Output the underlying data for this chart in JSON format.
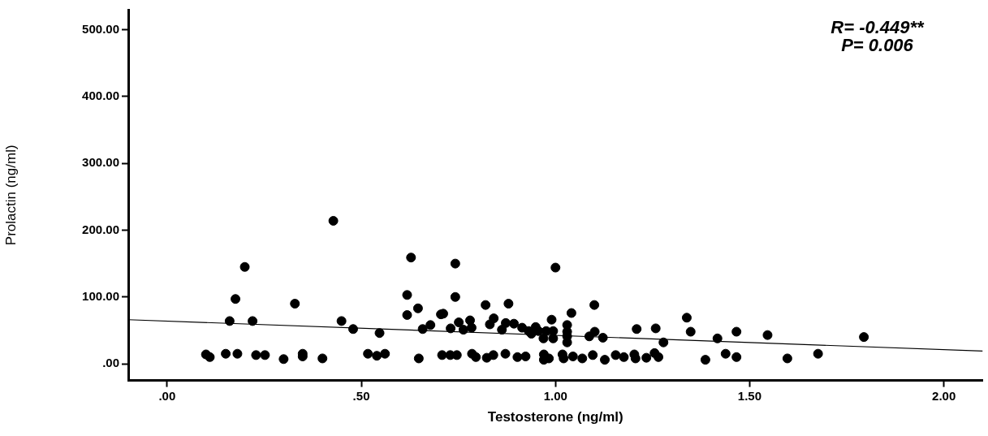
{
  "chart_data": {
    "type": "scatter",
    "xlabel": "Testosterone (ng/ml)",
    "ylabel": "Prolactin (ng/ml)",
    "annotations": [
      "R= -0.449**",
      "P= 0.006"
    ],
    "xlim": [
      -0.1,
      2.1
    ],
    "ylim": [
      -25,
      530
    ],
    "xticks": [
      {
        "value": 0,
        "label": ".00"
      },
      {
        "value": 0.5,
        "label": ".50"
      },
      {
        "value": 1,
        "label": "1.00"
      },
      {
        "value": 1.5,
        "label": "1.50"
      },
      {
        "value": 2,
        "label": "2.00"
      }
    ],
    "yticks": [
      {
        "value": 0,
        "label": ".00"
      },
      {
        "value": 100,
        "label": "100.00"
      },
      {
        "value": 200,
        "label": "200.00"
      },
      {
        "value": 300,
        "label": "300.00"
      },
      {
        "value": 400,
        "label": "400.00"
      },
      {
        "value": 500,
        "label": "500.00"
      }
    ],
    "grid": false,
    "legend": false,
    "marker": "circle",
    "series": [
      {
        "color": "#000000",
        "x": [
          0.1,
          0.11,
          0.151,
          0.181,
          0.2,
          0.176,
          0.161,
          0.22,
          0.229,
          0.252,
          0.3,
          0.349,
          0.349,
          0.4,
          0.329,
          0.428,
          0.449,
          0.479,
          0.547,
          0.517,
          0.54,
          0.561,
          0.628,
          0.618,
          0.646,
          0.618,
          0.658,
          0.678,
          0.648,
          0.705,
          0.708,
          0.742,
          1.0,
          0.742,
          0.82,
          0.879,
          1.1,
          0.711,
          1.041,
          0.99,
          0.751,
          0.73,
          0.78,
          0.763,
          0.784,
          0.841,
          0.831,
          0.862,
          0.872,
          0.893,
          0.914,
          0.931,
          0.949,
          0.938,
          0.956,
          0.976,
          0.994,
          0.969,
          0.994,
          1.03,
          1.03,
          1.03,
          1.03,
          1.101,
          1.087,
          1.122,
          1.209,
          1.258,
          1.278,
          1.338,
          1.348,
          0.729,
          0.746,
          0.785,
          0.795,
          0.823,
          0.84,
          0.871,
          0.902,
          0.923,
          0.97,
          0.97,
          0.983,
          1.018,
          1.021,
          1.045,
          1.069,
          1.096,
          1.127,
          1.155,
          1.176,
          1.203,
          1.206,
          1.234,
          1.255,
          1.265,
          1.386,
          1.417,
          1.466,
          1.546,
          1.794,
          1.438,
          1.466,
          1.597,
          1.676
        ],
        "values": [
          14,
          10,
          15,
          15,
          145,
          97,
          64,
          64,
          13,
          13,
          7,
          15,
          11,
          8,
          90,
          214,
          64,
          52,
          46,
          15,
          12,
          15,
          159,
          103,
          83,
          73,
          52,
          58,
          8,
          74,
          13,
          150,
          144,
          100,
          88,
          90,
          88,
          75,
          76,
          66,
          62,
          53,
          65,
          51,
          54,
          68,
          59,
          51,
          61,
          60,
          54,
          49,
          55,
          45,
          49,
          49,
          49,
          38,
          38,
          58,
          48,
          41,
          32,
          48,
          41,
          39,
          52,
          53,
          32,
          69,
          48,
          13,
          13,
          15,
          10,
          9,
          13,
          15,
          10,
          11,
          14,
          6,
          8,
          14,
          8,
          11,
          8,
          13,
          6,
          13,
          10,
          14,
          8,
          9,
          16,
          10,
          6,
          38,
          48,
          43,
          40,
          15,
          10,
          8,
          15
        ]
      },
      {
        "type": "line",
        "color": "#000000",
        "x": [
          -0.1,
          2.1
        ],
        "values": [
          66,
          19
        ],
        "marker": "none"
      }
    ]
  }
}
